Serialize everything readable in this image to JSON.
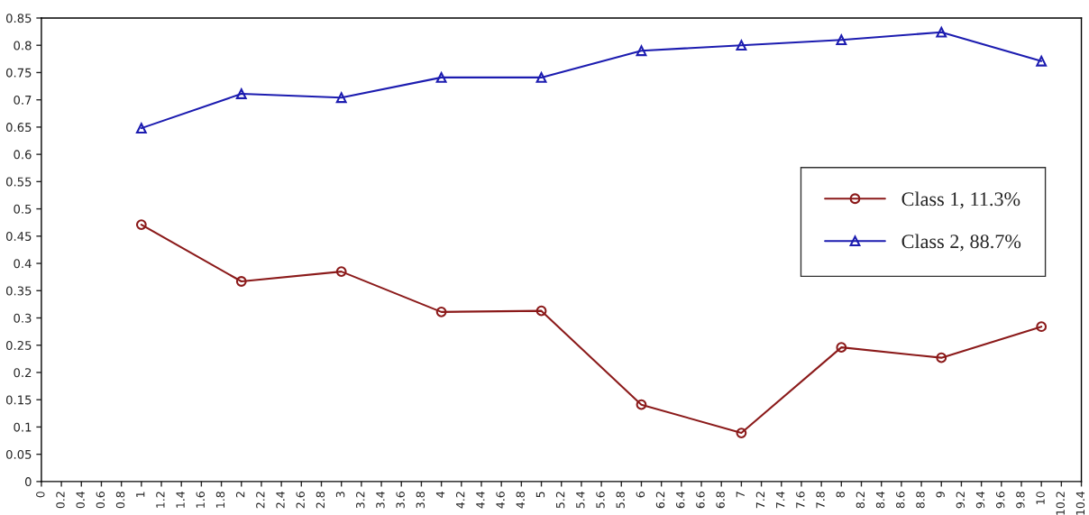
{
  "chart_data": {
    "type": "line",
    "x": [
      1,
      2,
      3,
      4,
      5,
      6,
      7,
      8,
      9,
      10
    ],
    "series": [
      {
        "name": "Class 1, 11.3%",
        "color": "#8b1a1a",
        "marker": "circle",
        "values": [
          0.471,
          0.367,
          0.385,
          0.311,
          0.313,
          0.141,
          0.089,
          0.246,
          0.227,
          0.284
        ]
      },
      {
        "name": "Class 2, 88.7%",
        "color": "#1c1cb0",
        "marker": "triangle",
        "values": [
          0.648,
          0.711,
          0.704,
          0.741,
          0.741,
          0.79,
          0.8,
          0.81,
          0.824,
          0.771
        ]
      }
    ],
    "xlim": [
      0,
      10.4
    ],
    "xticks": [
      0,
      0.2,
      0.4,
      0.6,
      0.8,
      1,
      1.2,
      1.4,
      1.6,
      1.8,
      2,
      2.2,
      2.4,
      2.6,
      2.8,
      3,
      3.2,
      3.4,
      3.6,
      3.8,
      4,
      4.2,
      4.4,
      4.6,
      4.8,
      5,
      5.2,
      5.4,
      5.6,
      5.8,
      6,
      6.2,
      6.4,
      6.6,
      6.8,
      7,
      7.2,
      7.4,
      7.6,
      7.8,
      8,
      8.2,
      8.4,
      8.6,
      8.8,
      9,
      9.2,
      9.4,
      9.6,
      9.8,
      10,
      10.2,
      10.4
    ],
    "ylim": [
      0,
      0.85
    ],
    "yticks": [
      0,
      0.05,
      0.1,
      0.15,
      0.2,
      0.25,
      0.3,
      0.35,
      0.4,
      0.45,
      0.5,
      0.55,
      0.6,
      0.65,
      0.7,
      0.75,
      0.8,
      0.85
    ],
    "grid": false,
    "legend": "right",
    "line_style": "solid"
  }
}
